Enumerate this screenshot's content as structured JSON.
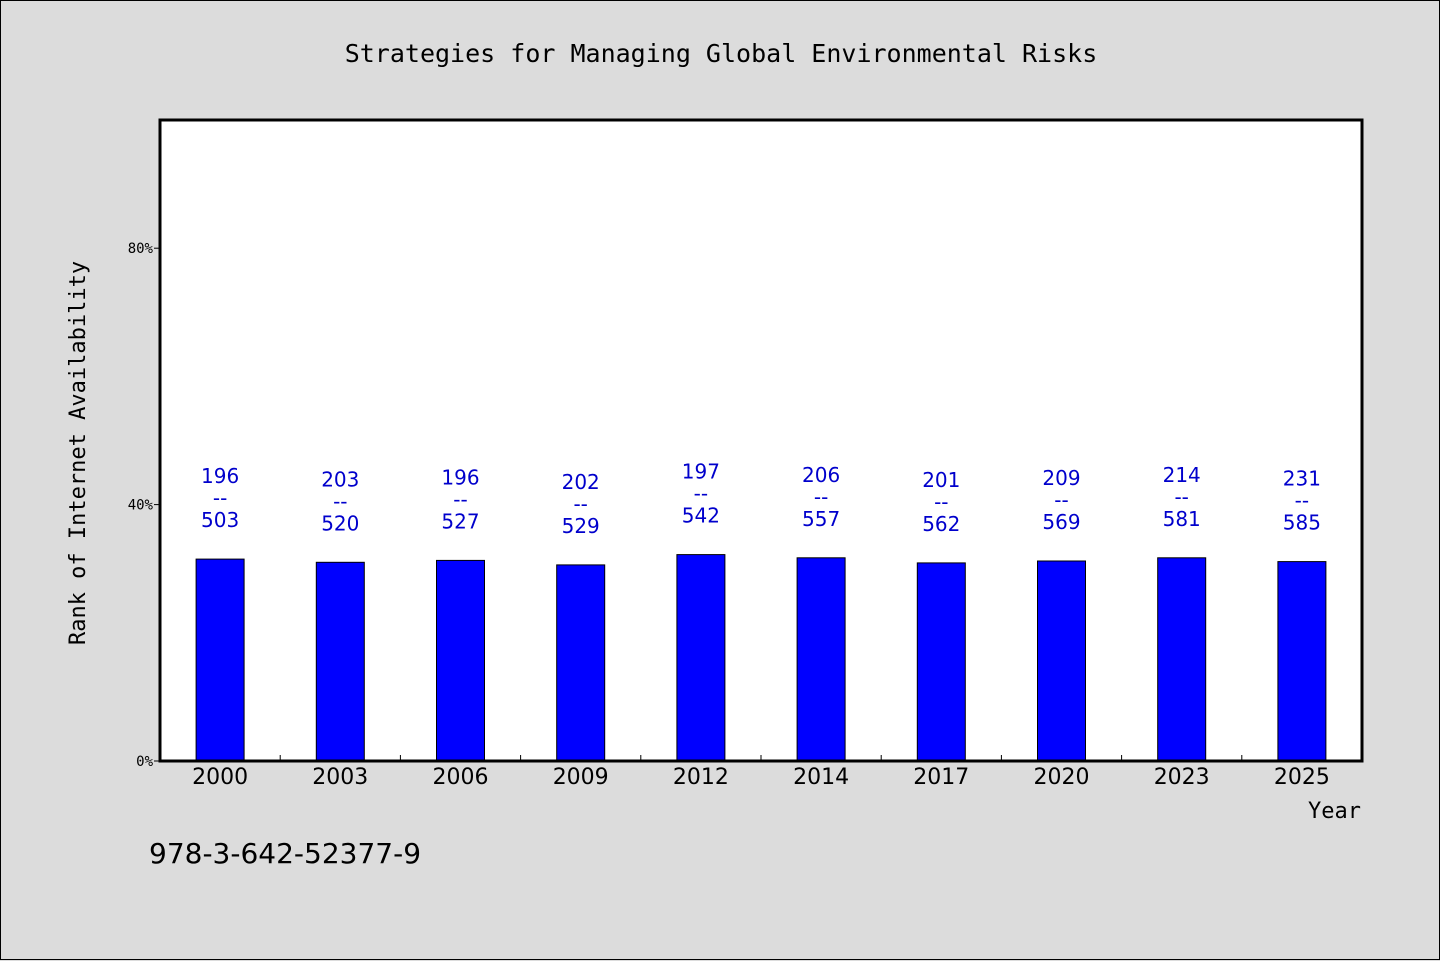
{
  "chart_data": {
    "type": "bar",
    "title": "Strategies for Managing Global Environmental Risks",
    "xlabel": "Year",
    "ylabel": "Rank of Internet Availability",
    "categories": [
      "2000",
      "2003",
      "2006",
      "2009",
      "2012",
      "2014",
      "2017",
      "2020",
      "2023",
      "2025"
    ],
    "values": [
      31.5,
      31.0,
      31.3,
      30.6,
      32.2,
      31.7,
      30.9,
      31.2,
      31.7,
      31.1
    ],
    "labels_top": [
      "196",
      "203",
      "196",
      "202",
      "197",
      "206",
      "201",
      "209",
      "214",
      "231"
    ],
    "label_separator": "--",
    "labels_bottom": [
      "503",
      "520",
      "527",
      "529",
      "542",
      "557",
      "562",
      "569",
      "581",
      "585"
    ],
    "ylim": [
      0,
      100
    ],
    "yticks": [
      0,
      40,
      80
    ],
    "ytick_labels": [
      "0%",
      "40%",
      "80%"
    ],
    "grid": false,
    "bar_color": "#0000ff",
    "label_color": "#0000cc"
  },
  "footer": {
    "code": "978-3-642-52377-9"
  },
  "colors": {
    "background": "#dcdcdc",
    "plot_background": "#ffffff"
  }
}
